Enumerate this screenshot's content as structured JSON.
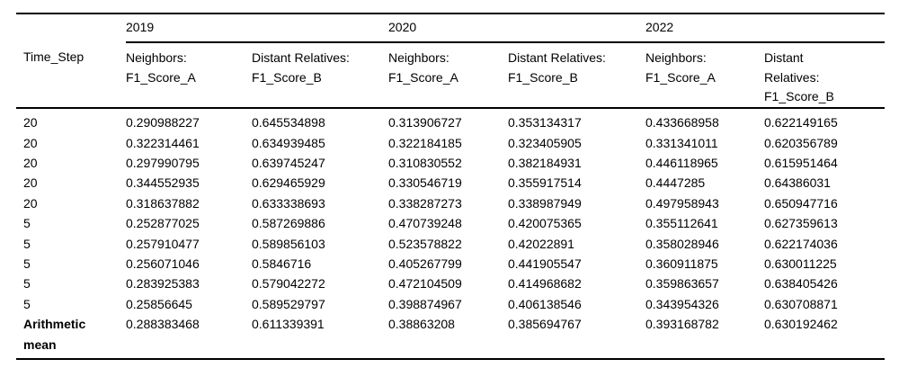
{
  "chart_data": {
    "type": "table",
    "row_label_header": "Time_Step",
    "column_groups": [
      "2019",
      "2020",
      "2022"
    ],
    "sub_columns": [
      "Neighbors: F1_Score_A",
      "Distant Relatives: F1_Score_B",
      "Neighbors: F1_Score_A",
      "Distant Relatives: F1_Score_B",
      "Neighbors: F1_Score_A",
      "Distant Relatives: F1_Score_B"
    ],
    "rows": [
      {
        "label": "20",
        "bold": false,
        "values": [
          "0.290988227",
          "0.645534898",
          "0.313906727",
          "0.353134317",
          "0.433668958",
          "0.622149165"
        ]
      },
      {
        "label": "20",
        "bold": false,
        "values": [
          "0.322314461",
          "0.634939485",
          "0.322184185",
          "0.323405905",
          "0.331341011",
          "0.620356789"
        ]
      },
      {
        "label": "20",
        "bold": false,
        "values": [
          "0.297990795",
          "0.639745247",
          "0.310830552",
          "0.382184931",
          "0.446118965",
          "0.615951464"
        ]
      },
      {
        "label": "20",
        "bold": false,
        "values": [
          "0.344552935",
          "0.629465929",
          "0.330546719",
          "0.355917514",
          "0.4447285",
          "0.64386031"
        ]
      },
      {
        "label": "20",
        "bold": false,
        "values": [
          "0.318637882",
          "0.633338693",
          "0.338287273",
          "0.338987949",
          "0.497958943",
          "0.650947716"
        ]
      },
      {
        "label": "5",
        "bold": false,
        "values": [
          "0.252877025",
          "0.587269886",
          "0.470739248",
          "0.420075365",
          "0.355112641",
          "0.627359613"
        ]
      },
      {
        "label": "5",
        "bold": false,
        "values": [
          "0.257910477",
          "0.589856103",
          "0.523578822",
          "0.42022891",
          "0.358028946",
          "0.622174036"
        ]
      },
      {
        "label": "5",
        "bold": false,
        "values": [
          "0.256071046",
          "0.5846716",
          "0.405267799",
          "0.441905547",
          "0.360911875",
          "0.630011225"
        ]
      },
      {
        "label": "5",
        "bold": false,
        "values": [
          "0.283925383",
          "0.579042272",
          "0.472104509",
          "0.414968682",
          "0.359863657",
          "0.638405426"
        ]
      },
      {
        "label": "5",
        "bold": false,
        "values": [
          "0.25856645",
          "0.589529797",
          "0.398874967",
          "0.406138546",
          "0.343954326",
          "0.630708871"
        ]
      },
      {
        "label": "Arithmetic mean",
        "bold": true,
        "values": [
          "0.288383468",
          "0.611339391",
          "0.38863208",
          "0.385694767",
          "0.393168782",
          "0.630192462"
        ]
      }
    ]
  },
  "style": {
    "background": "#ffffff",
    "text_color": "#000000",
    "rule_color": "#000000"
  }
}
